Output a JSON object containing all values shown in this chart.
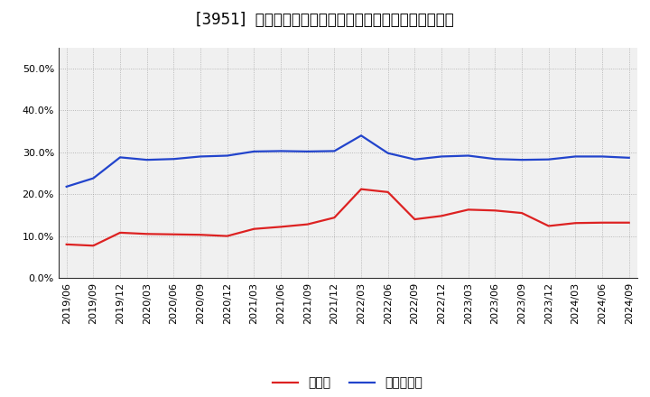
{
  "title": "[3951]  現預金、有利子負債の総資産に対する比率の推移",
  "x_labels": [
    "2019/06",
    "2019/09",
    "2019/12",
    "2020/03",
    "2020/06",
    "2020/09",
    "2020/12",
    "2021/03",
    "2021/06",
    "2021/09",
    "2021/12",
    "2022/03",
    "2022/06",
    "2022/09",
    "2022/12",
    "2023/03",
    "2023/06",
    "2023/09",
    "2023/12",
    "2024/03",
    "2024/06",
    "2024/09"
  ],
  "cash": [
    0.08,
    0.077,
    0.108,
    0.105,
    0.104,
    0.103,
    0.1,
    0.117,
    0.122,
    0.128,
    0.144,
    0.212,
    0.205,
    0.14,
    0.148,
    0.163,
    0.161,
    0.155,
    0.124,
    0.131,
    0.132,
    0.132
  ],
  "debt": [
    0.218,
    0.238,
    0.288,
    0.282,
    0.284,
    0.29,
    0.292,
    0.302,
    0.303,
    0.302,
    0.303,
    0.34,
    0.298,
    0.283,
    0.29,
    0.292,
    0.284,
    0.282,
    0.283,
    0.29,
    0.29,
    0.287
  ],
  "cash_color": "#dd2222",
  "debt_color": "#2244cc",
  "background_color": "#ffffff",
  "plot_bg_color": "#f0f0f0",
  "grid_color": "#999999",
  "ylim": [
    0.0,
    0.55
  ],
  "yticks": [
    0.0,
    0.1,
    0.2,
    0.3,
    0.4,
    0.5
  ],
  "legend_cash": "現預金",
  "legend_debt": "有利子負債",
  "title_fontsize": 12,
  "legend_fontsize": 10,
  "tick_fontsize": 8,
  "linewidth": 1.6
}
